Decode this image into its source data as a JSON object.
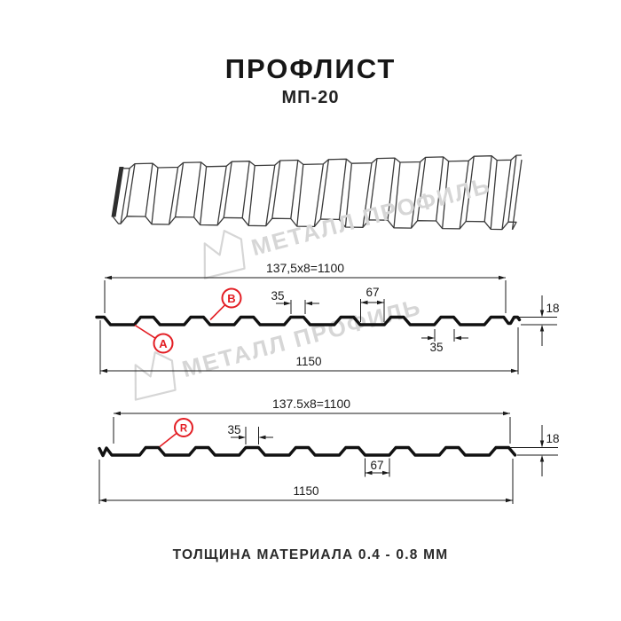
{
  "header": {
    "title": "ПРОФЛИСТ",
    "model": "МП-20"
  },
  "watermark": {
    "brand": "МЕТАЛЛ ПРОФИЛЬ"
  },
  "footer": {
    "thickness_note": "ТОЛЩИНА МАТЕРИАЛА 0.4 - 0.8 ММ"
  },
  "colors": {
    "accent": "#e31e24",
    "ink": "#1a1a1a",
    "drawing_line": "#3a3a3a",
    "watermark": "#d6d6d6"
  },
  "profile_a": {
    "length_formula": "137,5x8=1100",
    "total_width": "1150",
    "rib_top_width": "35",
    "valley_width": "67",
    "height": "18",
    "rib_bottom_width": "35",
    "label_bottom_side": "A",
    "label_top_side": "B"
  },
  "profile_r": {
    "length_formula": "137.5x8=1100",
    "total_width": "1150",
    "rib_top_width": "35",
    "valley_width": "67",
    "height": "18",
    "variant_label": "R"
  }
}
